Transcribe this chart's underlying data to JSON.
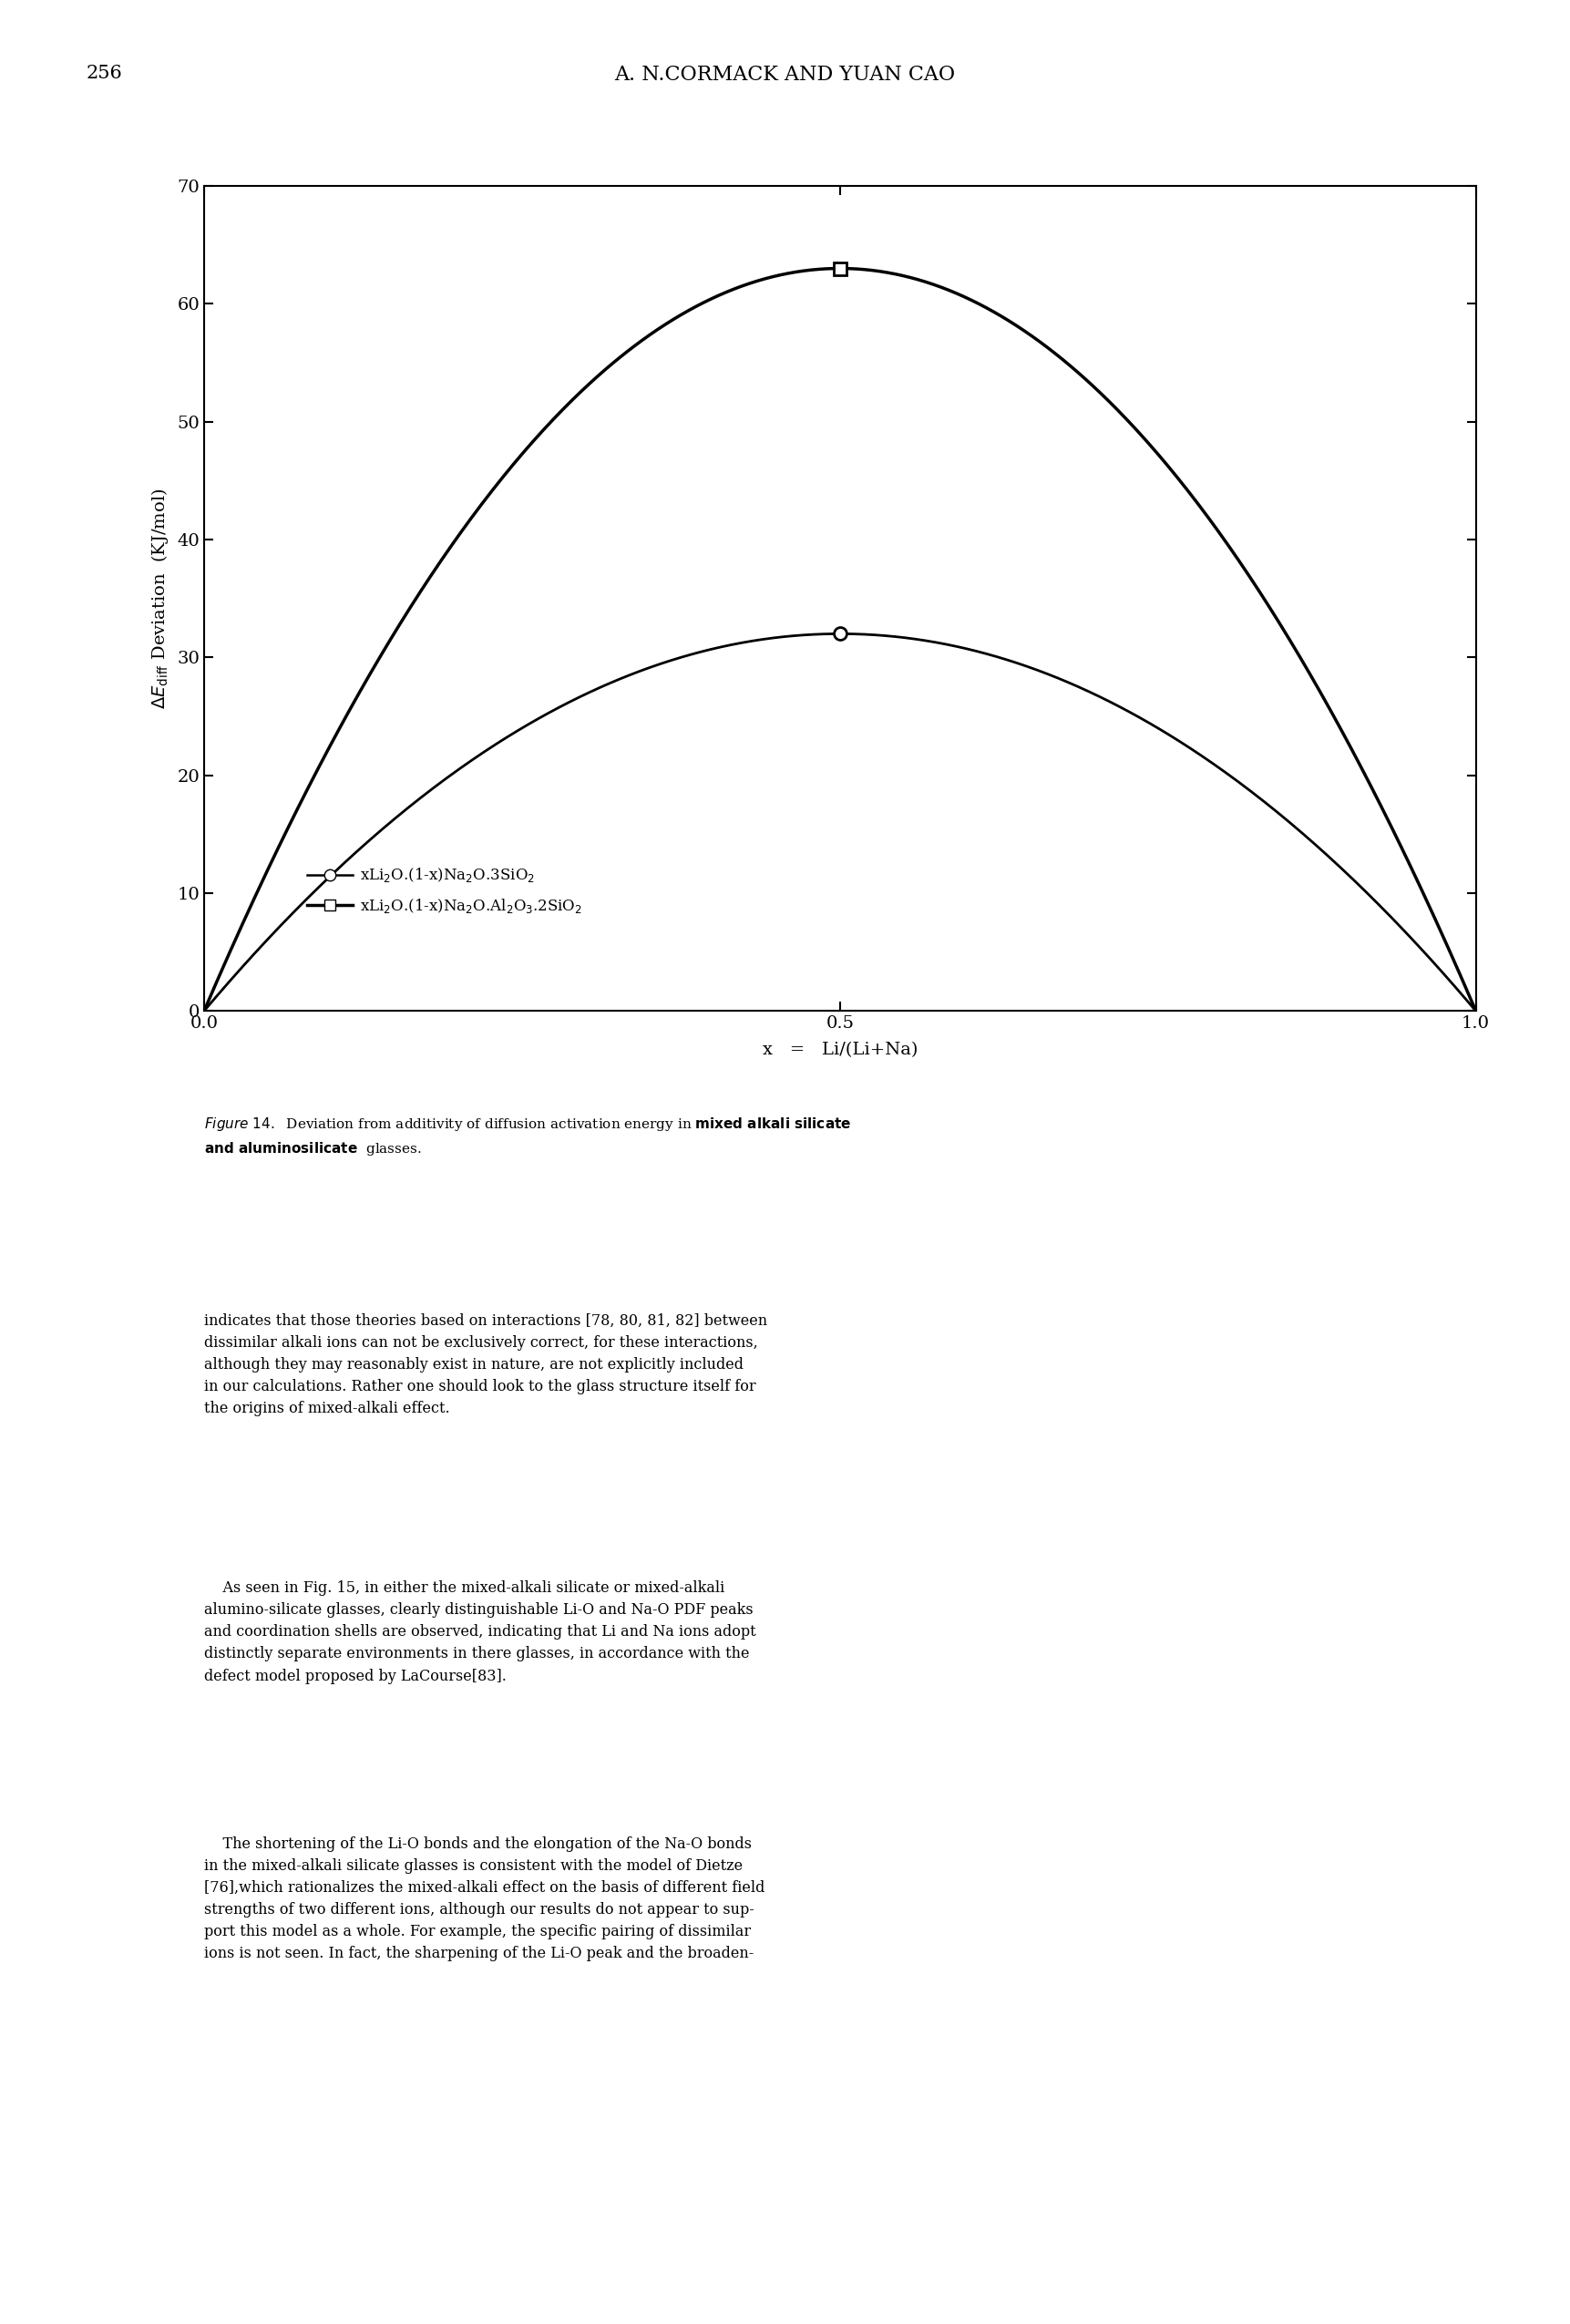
{
  "page_number": "256",
  "header": "A. N.CORMACK AND YUAN CAO",
  "ylabel_top": "ΔE",
  "ylabel_sub": "diff",
  "ylabel_bottom": " Deviation  (KJ/mol)",
  "xlabel": "x   =   Li/(Li+Na)",
  "ylim": [
    0,
    70
  ],
  "xlim": [
    0,
    1
  ],
  "yticks": [
    0,
    10,
    20,
    30,
    40,
    50,
    60,
    70
  ],
  "xticks": [
    0,
    0.5,
    1
  ],
  "curve1_peak": 32,
  "curve2_peak": 63,
  "figure_caption_italic": "Figure 14.",
  "figure_caption_mixed": "  Deviation from additivity of diffusion activation energy in ",
  "figure_caption_bold": "mixed alkali silicate\nand aluminosilicate",
  "figure_caption_end": " glasses.",
  "bg_color": "#ffffff",
  "line_color": "#000000",
  "body1": "indicates that those theories based on interactions [78, 80, 81, 82] between\ndissimilar alkali ions can not be exclusively correct, for these interactions,\nalthough they may reasonably exist in nature, are not explicitly included\nin our calculations. Rather one should look to the glass structure itself for\nthe origins of mixed-alkali effect.",
  "body2": "    As seen in Fig. 15, in either the mixed-alkali silicate or mixed-alkali\nalumino-silicate glasses, clearly distinguishable Li-O and Na-O PDF peaks\nand coordination shells are observed, indicating that Li and Na ions adopt\ndistinctly separate environments in there glasses, in accordance with the\ndefect model proposed by LaCourse[83].",
  "body3": "    The shortening of the Li-O bonds and the elongation of the Na-O bonds\nin the mixed-alkali silicate glasses is consistent with the model of Dietze\n[76],which rationalizes the mixed-alkali effect on the basis of different field\nstrengths of two different ions, although our results do not appear to sup-\nport this model as a whole. For example, the specific pairing of dissimilar\nions is not seen. In fact, the sharpening of the Li-O peak and the broaden-"
}
